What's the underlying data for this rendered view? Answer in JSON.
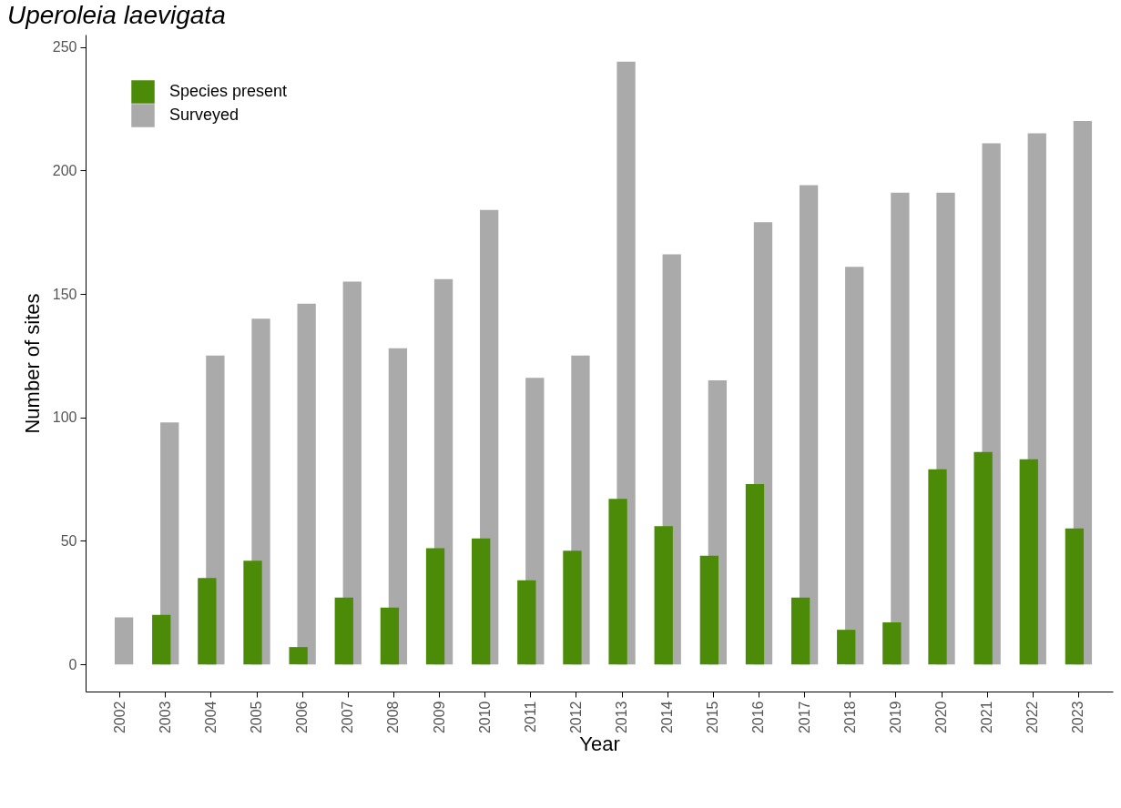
{
  "chart_data": {
    "type": "bar",
    "title": "Uperoleia laevigata",
    "xlabel": "Year",
    "ylabel": "Number of sites",
    "categories": [
      "2002",
      "2003",
      "2004",
      "2005",
      "2006",
      "2007",
      "2008",
      "2009",
      "2010",
      "2011",
      "2012",
      "2013",
      "2014",
      "2015",
      "2016",
      "2017",
      "2018",
      "2019",
      "2020",
      "2021",
      "2022",
      "2023"
    ],
    "series": [
      {
        "name": "Species present",
        "color": "#4b8b07",
        "values": [
          0,
          20,
          35,
          42,
          7,
          27,
          23,
          47,
          51,
          34,
          46,
          67,
          56,
          44,
          73,
          27,
          14,
          17,
          79,
          86,
          83,
          55
        ]
      },
      {
        "name": "Surveyed",
        "color": "#aaaaaa",
        "values": [
          19,
          98,
          125,
          140,
          146,
          155,
          128,
          156,
          184,
          116,
          125,
          244,
          166,
          115,
          179,
          194,
          161,
          191,
          191,
          211,
          215,
          220
        ]
      }
    ],
    "ylim": [
      -11,
      255
    ],
    "yticks": [
      0,
      50,
      100,
      150,
      200,
      250
    ],
    "grid": false,
    "legend": "top left"
  }
}
